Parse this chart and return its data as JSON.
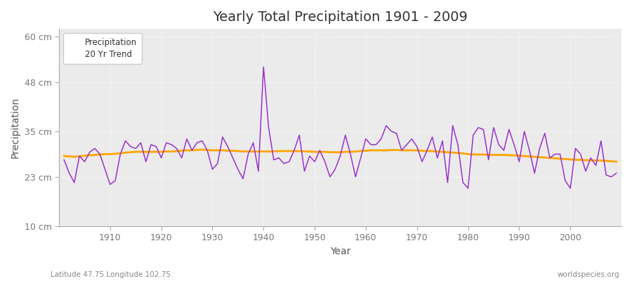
{
  "title": "Yearly Total Precipitation 1901 - 2009",
  "xlabel": "Year",
  "ylabel": "Precipitation",
  "subtitle_left": "Latitude 47.75 Longitude 102.75",
  "subtitle_right": "worldspecies.org",
  "years": [
    1901,
    1902,
    1903,
    1904,
    1905,
    1906,
    1907,
    1908,
    1909,
    1910,
    1911,
    1912,
    1913,
    1914,
    1915,
    1916,
    1917,
    1918,
    1919,
    1920,
    1921,
    1922,
    1923,
    1924,
    1925,
    1926,
    1927,
    1928,
    1929,
    1930,
    1931,
    1932,
    1933,
    1934,
    1935,
    1936,
    1937,
    1938,
    1939,
    1940,
    1941,
    1942,
    1943,
    1944,
    1945,
    1946,
    1947,
    1948,
    1949,
    1950,
    1951,
    1952,
    1953,
    1954,
    1955,
    1956,
    1957,
    1958,
    1959,
    1960,
    1961,
    1962,
    1963,
    1964,
    1965,
    1966,
    1967,
    1968,
    1969,
    1970,
    1971,
    1972,
    1973,
    1974,
    1975,
    1976,
    1977,
    1978,
    1979,
    1980,
    1981,
    1982,
    1983,
    1984,
    1985,
    1986,
    1987,
    1988,
    1989,
    1990,
    1991,
    1992,
    1993,
    1994,
    1995,
    1996,
    1997,
    1998,
    1999,
    2000,
    2001,
    2002,
    2003,
    2004,
    2005,
    2006,
    2007,
    2008,
    2009
  ],
  "precip": [
    27.5,
    24.0,
    21.5,
    28.5,
    27.0,
    29.5,
    30.5,
    29.0,
    25.0,
    21.0,
    22.0,
    29.0,
    32.5,
    31.0,
    30.5,
    32.0,
    27.0,
    31.5,
    31.0,
    28.0,
    32.0,
    31.5,
    30.5,
    28.0,
    33.0,
    30.0,
    32.0,
    32.5,
    30.0,
    25.0,
    26.5,
    33.5,
    31.0,
    28.0,
    25.0,
    22.5,
    29.0,
    32.0,
    24.5,
    52.0,
    36.0,
    27.5,
    28.0,
    26.5,
    27.0,
    30.0,
    34.0,
    24.5,
    28.5,
    27.0,
    30.0,
    27.0,
    23.0,
    25.0,
    28.5,
    34.0,
    29.0,
    23.0,
    28.0,
    33.0,
    31.5,
    31.5,
    33.0,
    36.5,
    35.0,
    34.5,
    30.0,
    31.5,
    33.0,
    31.0,
    27.0,
    30.0,
    33.5,
    28.0,
    32.5,
    21.5,
    36.5,
    31.5,
    21.5,
    20.0,
    34.0,
    36.0,
    35.5,
    27.5,
    36.0,
    31.5,
    30.0,
    35.5,
    31.5,
    27.0,
    35.0,
    30.0,
    24.0,
    30.5,
    34.5,
    28.0,
    29.0,
    29.0,
    22.0,
    20.0,
    30.5,
    29.0,
    24.5,
    28.0,
    26.0,
    32.5,
    23.5,
    23.0,
    24.0
  ],
  "trend": [
    28.5,
    28.4,
    28.3,
    28.4,
    28.6,
    28.7,
    28.8,
    28.9,
    29.0,
    29.0,
    29.1,
    29.2,
    29.4,
    29.5,
    29.6,
    29.6,
    29.6,
    29.6,
    29.6,
    29.6,
    29.7,
    29.7,
    29.8,
    29.9,
    30.0,
    30.0,
    30.1,
    30.2,
    30.1,
    30.0,
    30.0,
    30.0,
    29.9,
    29.9,
    29.8,
    29.7,
    29.7,
    29.7,
    29.7,
    29.7,
    29.7,
    29.7,
    29.8,
    29.8,
    29.8,
    29.8,
    29.8,
    29.7,
    29.7,
    29.6,
    29.6,
    29.6,
    29.5,
    29.5,
    29.5,
    29.6,
    29.6,
    29.7,
    29.8,
    29.9,
    30.0,
    30.0,
    30.0,
    30.0,
    30.1,
    30.1,
    30.0,
    30.0,
    30.0,
    30.0,
    29.9,
    29.8,
    29.8,
    29.7,
    29.6,
    29.5,
    29.4,
    29.3,
    29.2,
    29.0,
    28.9,
    28.9,
    28.9,
    28.8,
    28.8,
    28.8,
    28.8,
    28.7,
    28.7,
    28.6,
    28.5,
    28.4,
    28.3,
    28.2,
    28.1,
    28.0,
    27.9,
    27.8,
    27.7,
    27.6,
    27.5,
    27.5,
    27.4,
    27.4,
    27.3,
    27.3,
    27.2,
    27.1,
    27.0
  ],
  "precip_color": "#9933cc",
  "trend_color": "#FFA500",
  "fig_bg_color": "#ffffff",
  "plot_bg_color": "#ebebeb",
  "grid_color": "#ffffff",
  "grid_style": ":",
  "yticks": [
    10,
    23,
    35,
    48,
    60
  ],
  "ytick_labels": [
    "10 cm",
    "23 cm",
    "35 cm",
    "48 cm",
    "60 cm"
  ],
  "xticks": [
    1910,
    1920,
    1930,
    1940,
    1950,
    1960,
    1970,
    1980,
    1990,
    2000
  ],
  "ylim": [
    10,
    62
  ],
  "xlim": [
    1900,
    2010
  ],
  "left_text_color": "#888888",
  "right_text_color": "#888888"
}
